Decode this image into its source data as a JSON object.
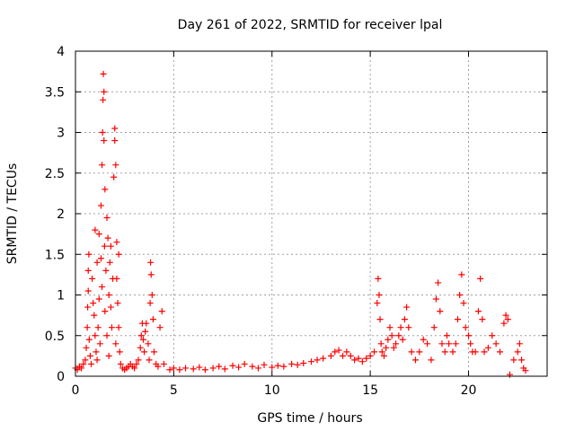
{
  "chart_data": {
    "type": "scatter",
    "title": "Day 261 of 2022, SRMTID for receiver lpal",
    "xlabel": "GPS time / hours",
    "ylabel": "SRMTID / TECUs",
    "xlim": [
      0,
      24
    ],
    "ylim": [
      0,
      4
    ],
    "xticks": [
      0,
      5,
      10,
      15,
      20
    ],
    "xtick_labels": [
      "0",
      "5",
      "10",
      "15",
      "20"
    ],
    "yticks": [
      0,
      0.5,
      1,
      1.5,
      2,
      2.5,
      3,
      3.5,
      4
    ],
    "ytick_labels": [
      "0",
      "0.5",
      "1",
      "1.5",
      "2",
      "2.5",
      "3",
      "3.5",
      "4"
    ],
    "grid": true,
    "marker": "+",
    "color": "#ff0000",
    "series": [
      {
        "name": "SRMTID",
        "points": [
          [
            0.0,
            0.1
          ],
          [
            0.1,
            0.08
          ],
          [
            0.2,
            0.12
          ],
          [
            0.3,
            0.1
          ],
          [
            0.4,
            0.15
          ],
          [
            0.5,
            0.2
          ],
          [
            0.55,
            0.35
          ],
          [
            0.6,
            0.6
          ],
          [
            0.62,
            0.85
          ],
          [
            0.65,
            1.05
          ],
          [
            0.65,
            1.3
          ],
          [
            0.68,
            1.5
          ],
          [
            0.7,
            0.45
          ],
          [
            0.75,
            0.25
          ],
          [
            0.8,
            0.15
          ],
          [
            0.85,
            1.2
          ],
          [
            0.9,
            0.9
          ],
          [
            0.95,
            0.75
          ],
          [
            1.0,
            0.5
          ],
          [
            1.0,
            1.8
          ],
          [
            1.05,
            0.3
          ],
          [
            1.1,
            1.4
          ],
          [
            1.1,
            0.2
          ],
          [
            1.15,
            0.6
          ],
          [
            1.2,
            1.75
          ],
          [
            1.2,
            0.95
          ],
          [
            1.25,
            0.4
          ],
          [
            1.3,
            1.45
          ],
          [
            1.3,
            2.1
          ],
          [
            1.35,
            2.6
          ],
          [
            1.35,
            1.1
          ],
          [
            1.38,
            3.0
          ],
          [
            1.4,
            3.4
          ],
          [
            1.42,
            3.72
          ],
          [
            1.45,
            3.5
          ],
          [
            1.45,
            2.9
          ],
          [
            1.48,
            1.6
          ],
          [
            1.5,
            0.8
          ],
          [
            1.5,
            2.3
          ],
          [
            1.55,
            1.3
          ],
          [
            1.6,
            0.5
          ],
          [
            1.6,
            1.95
          ],
          [
            1.65,
            1.7
          ],
          [
            1.7,
            1.0
          ],
          [
            1.7,
            0.25
          ],
          [
            1.75,
            1.4
          ],
          [
            1.8,
            0.85
          ],
          [
            1.8,
            1.6
          ],
          [
            1.85,
            0.6
          ],
          [
            1.9,
            1.2
          ],
          [
            1.95,
            2.45
          ],
          [
            2.0,
            3.05
          ],
          [
            2.0,
            2.9
          ],
          [
            2.05,
            2.6
          ],
          [
            2.05,
            0.4
          ],
          [
            2.1,
            1.65
          ],
          [
            2.1,
            1.2
          ],
          [
            2.15,
            0.9
          ],
          [
            2.2,
            0.6
          ],
          [
            2.2,
            1.5
          ],
          [
            2.25,
            0.3
          ],
          [
            2.3,
            0.15
          ],
          [
            2.4,
            0.1
          ],
          [
            2.5,
            0.08
          ],
          [
            2.6,
            0.1
          ],
          [
            2.7,
            0.12
          ],
          [
            2.8,
            0.15
          ],
          [
            2.9,
            0.12
          ],
          [
            3.0,
            0.1
          ],
          [
            3.1,
            0.15
          ],
          [
            3.2,
            0.2
          ],
          [
            3.3,
            0.35
          ],
          [
            3.35,
            0.5
          ],
          [
            3.4,
            0.65
          ],
          [
            3.45,
            0.45
          ],
          [
            3.5,
            0.3
          ],
          [
            3.55,
            0.55
          ],
          [
            3.6,
            0.65
          ],
          [
            3.7,
            0.4
          ],
          [
            3.75,
            0.2
          ],
          [
            3.8,
            0.9
          ],
          [
            3.82,
            1.4
          ],
          [
            3.85,
            1.25
          ],
          [
            3.9,
            1.0
          ],
          [
            3.95,
            0.7
          ],
          [
            4.0,
            0.3
          ],
          [
            4.1,
            0.15
          ],
          [
            4.2,
            0.12
          ],
          [
            4.3,
            0.6
          ],
          [
            4.4,
            0.8
          ],
          [
            4.5,
            0.15
          ],
          [
            4.8,
            0.08
          ],
          [
            5.0,
            0.1
          ],
          [
            5.3,
            0.08
          ],
          [
            5.6,
            0.1
          ],
          [
            6.0,
            0.09
          ],
          [
            6.3,
            0.11
          ],
          [
            6.6,
            0.08
          ],
          [
            7.0,
            0.1
          ],
          [
            7.3,
            0.12
          ],
          [
            7.6,
            0.09
          ],
          [
            8.0,
            0.13
          ],
          [
            8.3,
            0.11
          ],
          [
            8.6,
            0.15
          ],
          [
            9.0,
            0.12
          ],
          [
            9.3,
            0.1
          ],
          [
            9.6,
            0.14
          ],
          [
            10.0,
            0.11
          ],
          [
            10.3,
            0.13
          ],
          [
            10.6,
            0.12
          ],
          [
            11.0,
            0.15
          ],
          [
            11.3,
            0.14
          ],
          [
            11.6,
            0.16
          ],
          [
            12.0,
            0.18
          ],
          [
            12.3,
            0.2
          ],
          [
            12.6,
            0.22
          ],
          [
            13.0,
            0.25
          ],
          [
            13.2,
            0.3
          ],
          [
            13.4,
            0.32
          ],
          [
            13.6,
            0.25
          ],
          [
            13.8,
            0.3
          ],
          [
            14.0,
            0.25
          ],
          [
            14.2,
            0.2
          ],
          [
            14.4,
            0.22
          ],
          [
            14.6,
            0.18
          ],
          [
            14.8,
            0.22
          ],
          [
            15.0,
            0.25
          ],
          [
            15.2,
            0.3
          ],
          [
            15.35,
            0.9
          ],
          [
            15.4,
            1.2
          ],
          [
            15.45,
            1.0
          ],
          [
            15.5,
            0.7
          ],
          [
            15.55,
            0.4
          ],
          [
            15.6,
            0.3
          ],
          [
            15.7,
            0.25
          ],
          [
            15.8,
            0.35
          ],
          [
            15.9,
            0.45
          ],
          [
            16.0,
            0.6
          ],
          [
            16.1,
            0.5
          ],
          [
            16.2,
            0.35
          ],
          [
            16.3,
            0.4
          ],
          [
            16.45,
            0.5
          ],
          [
            16.55,
            0.6
          ],
          [
            16.65,
            0.45
          ],
          [
            16.75,
            0.7
          ],
          [
            16.85,
            0.85
          ],
          [
            16.95,
            0.6
          ],
          [
            17.1,
            0.3
          ],
          [
            17.3,
            0.2
          ],
          [
            17.5,
            0.3
          ],
          [
            17.7,
            0.45
          ],
          [
            17.9,
            0.4
          ],
          [
            18.1,
            0.2
          ],
          [
            18.25,
            0.6
          ],
          [
            18.35,
            0.95
          ],
          [
            18.45,
            1.15
          ],
          [
            18.55,
            0.8
          ],
          [
            18.65,
            0.4
          ],
          [
            18.8,
            0.3
          ],
          [
            18.9,
            0.5
          ],
          [
            19.0,
            0.4
          ],
          [
            19.2,
            0.3
          ],
          [
            19.35,
            0.4
          ],
          [
            19.45,
            0.7
          ],
          [
            19.55,
            1.0
          ],
          [
            19.65,
            1.25
          ],
          [
            19.75,
            0.9
          ],
          [
            19.85,
            0.6
          ],
          [
            20.0,
            0.5
          ],
          [
            20.1,
            0.4
          ],
          [
            20.2,
            0.3
          ],
          [
            20.35,
            0.3
          ],
          [
            20.5,
            0.8
          ],
          [
            20.6,
            1.2
          ],
          [
            20.7,
            0.7
          ],
          [
            20.8,
            0.3
          ],
          [
            21.0,
            0.35
          ],
          [
            21.2,
            0.5
          ],
          [
            21.4,
            0.4
          ],
          [
            21.6,
            0.3
          ],
          [
            21.8,
            0.65
          ],
          [
            21.9,
            0.75
          ],
          [
            22.0,
            0.7
          ],
          [
            22.1,
            0.02
          ],
          [
            22.3,
            0.2
          ],
          [
            22.5,
            0.3
          ],
          [
            22.6,
            0.4
          ],
          [
            22.7,
            0.2
          ],
          [
            22.8,
            0.1
          ],
          [
            22.9,
            0.07
          ]
        ]
      }
    ]
  }
}
